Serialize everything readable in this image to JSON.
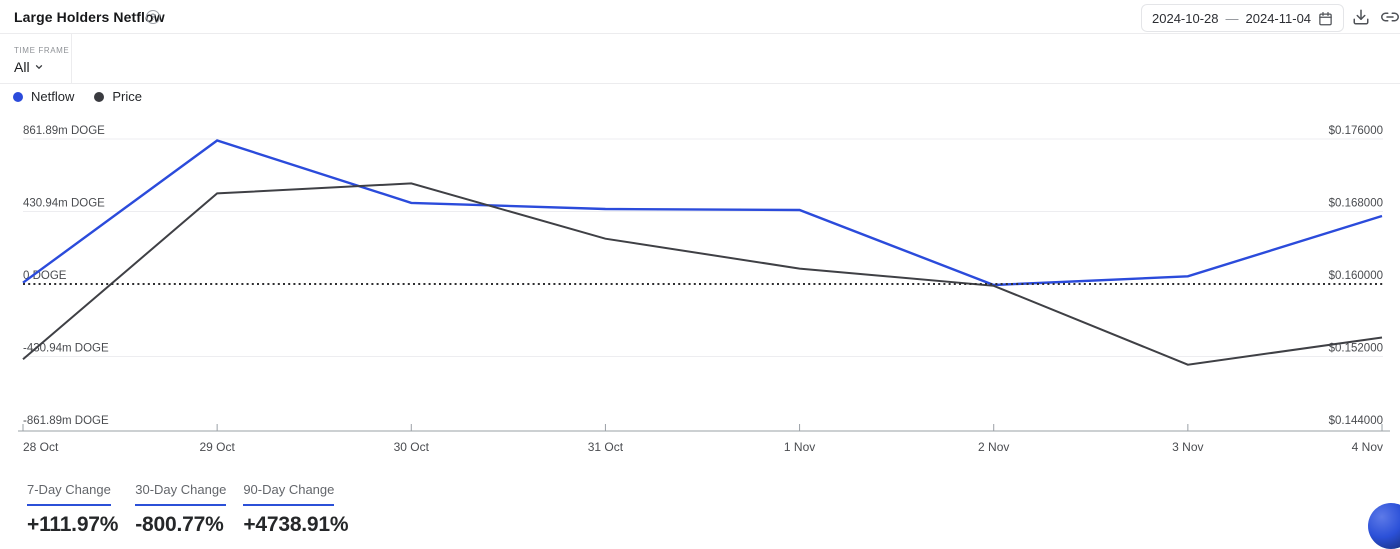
{
  "header": {
    "title": "Large Holders Netflow",
    "date_start": "2024-10-28",
    "date_separator": "—",
    "date_end": "2024-11-04"
  },
  "controls": {
    "time_frame_label": "TIME FRAME",
    "time_frame_value": "All"
  },
  "legend": [
    {
      "label": "Netflow",
      "color": "#2b4bdb"
    },
    {
      "label": "Price",
      "color": "#3a3b40"
    }
  ],
  "chart_data": {
    "type": "line",
    "x": [
      "28 Oct",
      "29 Oct",
      "30 Oct",
      "31 Oct",
      "1 Nov",
      "2 Nov",
      "3 Nov",
      "4 Nov"
    ],
    "series": [
      {
        "name": "Netflow",
        "axis": "left",
        "unit": "m DOGE",
        "color": "#2b4bdb",
        "values": [
          8,
          853,
          482,
          446,
          440,
          -6,
          46,
          404
        ]
      },
      {
        "name": "Price",
        "axis": "right",
        "unit": "USD",
        "color": "#3f4045",
        "values": [
          0.1517,
          0.17,
          0.1711,
          0.165,
          0.1617,
          0.1598,
          0.1511,
          0.1541
        ]
      }
    ],
    "left_axis": {
      "labels": [
        "861.89m DOGE",
        "430.94m DOGE",
        "0 DOGE",
        "-430.94m DOGE",
        "-861.89m DOGE"
      ],
      "max": 861.89,
      "min": -861.89
    },
    "right_axis": {
      "labels": [
        "$0.176000",
        "$0.168000",
        "$0.160000",
        "$0.152000",
        "$0.144000"
      ],
      "max": 0.176,
      "min": 0.144
    },
    "zero_line": {
      "style": "dotted",
      "left_value": 0,
      "right_value": 0.16
    },
    "grid": true,
    "legend_position": "top-left"
  },
  "stats": [
    {
      "label": "7-Day Change",
      "value": "+111.97%"
    },
    {
      "label": "30-Day Change",
      "value": "-800.77%"
    },
    {
      "label": "90-Day Change",
      "value": "+4738.91%"
    }
  ],
  "colors": {
    "accent_blue": "#2b50d8",
    "grid_line": "#ededf0",
    "axis_line": "#9aa0a6",
    "axis_text": "#4a4c50",
    "zero_line": "#2e2e30"
  }
}
